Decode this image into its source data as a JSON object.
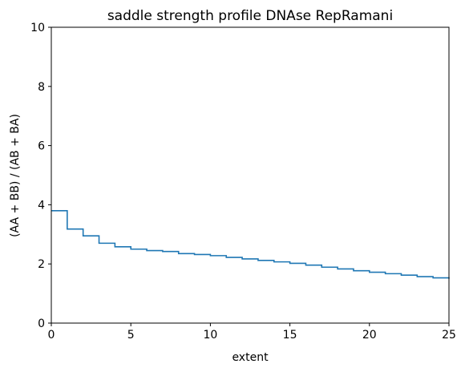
{
  "chart_data": {
    "type": "line",
    "step": "post",
    "title": "saddle strength profile DNAse RepRamani",
    "xlabel": "extent",
    "ylabel": "(AA + BB) / (AB + BA)",
    "xlim": [
      0,
      25
    ],
    "ylim": [
      0,
      10
    ],
    "xticks": [
      "0",
      "5",
      "10",
      "15",
      "20",
      "25"
    ],
    "yticks": [
      "0",
      "2",
      "4",
      "6",
      "8",
      "10"
    ],
    "grid": false,
    "legend": "none",
    "series": [
      {
        "color": "#1f77b4",
        "x": [
          0,
          1,
          2,
          3,
          4,
          5,
          6,
          7,
          8,
          9,
          10,
          11,
          12,
          13,
          14,
          15,
          16,
          17,
          18,
          19,
          20,
          21,
          22,
          23,
          24,
          25
        ],
        "values": [
          3.8,
          3.18,
          2.95,
          2.7,
          2.58,
          2.5,
          2.45,
          2.42,
          2.35,
          2.32,
          2.28,
          2.22,
          2.17,
          2.12,
          2.07,
          2.02,
          1.96,
          1.89,
          1.83,
          1.77,
          1.72,
          1.67,
          1.62,
          1.57,
          1.53,
          1.5
        ]
      }
    ]
  }
}
